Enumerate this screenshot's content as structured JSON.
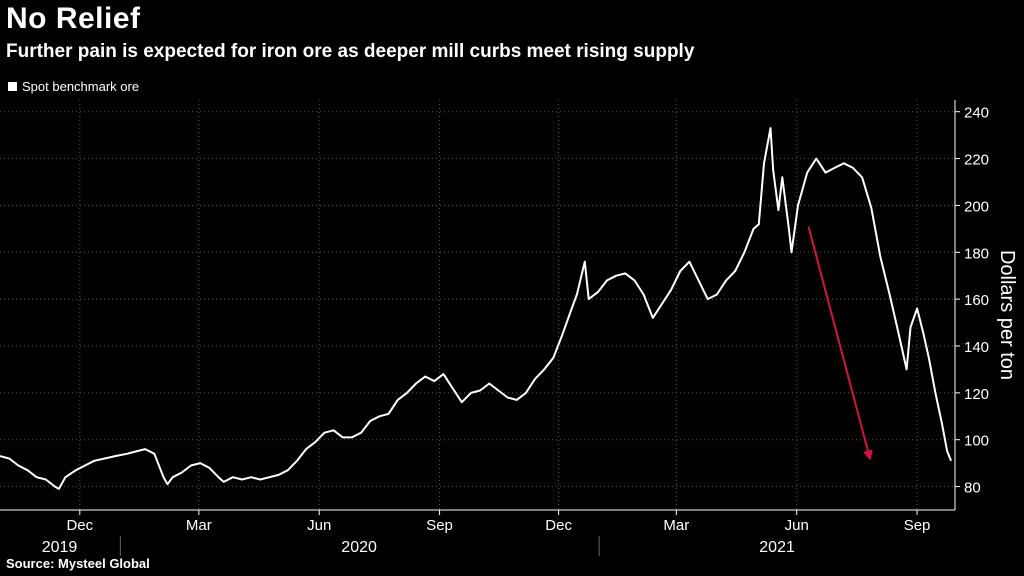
{
  "header": {
    "title": "No Relief",
    "subtitle": "Further pain is expected for iron ore as deeper mill curbs meet rising supply"
  },
  "legend": {
    "label": "Spot benchmark ore"
  },
  "source": "Source: Mysteel Global",
  "colors": {
    "background": "#000000",
    "line": "#ffffff",
    "grid": "#555555",
    "arrow": "#d6123f"
  },
  "chart_data": {
    "type": "line",
    "title": "No Relief",
    "subtitle": "Further pain is expected for iron ore as deeper mill curbs meet rising supply",
    "ylabel": "Dollars per ton",
    "xlabel": "",
    "ylim": [
      70,
      245
    ],
    "xlim": [
      "2019-10-01",
      "2021-09-30"
    ],
    "yticks": [
      80,
      100,
      120,
      140,
      160,
      180,
      200,
      220,
      240
    ],
    "xticks": [
      {
        "date": "2019-12-01",
        "label": "Dec"
      },
      {
        "date": "2020-03-01",
        "label": "Mar"
      },
      {
        "date": "2020-06-01",
        "label": "Jun"
      },
      {
        "date": "2020-09-01",
        "label": "Sep"
      },
      {
        "date": "2020-12-01",
        "label": "Dec"
      },
      {
        "date": "2021-03-01",
        "label": "Mar"
      },
      {
        "date": "2021-06-01",
        "label": "Jun"
      },
      {
        "date": "2021-09-01",
        "label": "Sep"
      }
    ],
    "years": [
      {
        "label": "2019",
        "from": "2019-10-01",
        "to": "2019-12-31"
      },
      {
        "label": "2020",
        "from": "2020-01-01",
        "to": "2020-12-31"
      },
      {
        "label": "2021",
        "from": "2021-01-01",
        "to": "2021-09-30"
      }
    ],
    "grid": true,
    "legend_position": "top-left",
    "series": [
      {
        "name": "Spot benchmark ore",
        "points": [
          [
            "2019-10-01",
            93
          ],
          [
            "2019-10-08",
            92
          ],
          [
            "2019-10-15",
            89
          ],
          [
            "2019-10-22",
            87
          ],
          [
            "2019-10-29",
            84
          ],
          [
            "2019-11-05",
            83
          ],
          [
            "2019-11-12",
            80
          ],
          [
            "2019-11-15",
            79
          ],
          [
            "2019-11-20",
            84
          ],
          [
            "2019-11-28",
            87
          ],
          [
            "2019-12-05",
            89
          ],
          [
            "2019-12-12",
            91
          ],
          [
            "2019-12-20",
            92
          ],
          [
            "2019-12-28",
            93
          ],
          [
            "2020-01-06",
            94
          ],
          [
            "2020-01-13",
            95
          ],
          [
            "2020-01-20",
            96
          ],
          [
            "2020-01-27",
            94
          ],
          [
            "2020-02-03",
            84
          ],
          [
            "2020-02-06",
            81
          ],
          [
            "2020-02-10",
            84
          ],
          [
            "2020-02-17",
            86
          ],
          [
            "2020-02-24",
            89
          ],
          [
            "2020-03-02",
            90
          ],
          [
            "2020-03-09",
            88
          ],
          [
            "2020-03-16",
            84
          ],
          [
            "2020-03-20",
            82
          ],
          [
            "2020-03-27",
            84
          ],
          [
            "2020-04-03",
            83
          ],
          [
            "2020-04-10",
            84
          ],
          [
            "2020-04-17",
            83
          ],
          [
            "2020-04-24",
            84
          ],
          [
            "2020-05-01",
            85
          ],
          [
            "2020-05-08",
            87
          ],
          [
            "2020-05-15",
            91
          ],
          [
            "2020-05-22",
            96
          ],
          [
            "2020-05-29",
            99
          ],
          [
            "2020-06-05",
            103
          ],
          [
            "2020-06-12",
            104
          ],
          [
            "2020-06-19",
            101
          ],
          [
            "2020-06-26",
            101
          ],
          [
            "2020-07-03",
            103
          ],
          [
            "2020-07-10",
            108
          ],
          [
            "2020-07-17",
            110
          ],
          [
            "2020-07-24",
            111
          ],
          [
            "2020-07-31",
            117
          ],
          [
            "2020-08-07",
            120
          ],
          [
            "2020-08-14",
            124
          ],
          [
            "2020-08-21",
            127
          ],
          [
            "2020-08-28",
            125
          ],
          [
            "2020-09-04",
            128
          ],
          [
            "2020-09-11",
            122
          ],
          [
            "2020-09-18",
            116
          ],
          [
            "2020-09-25",
            120
          ],
          [
            "2020-10-02",
            121
          ],
          [
            "2020-10-09",
            124
          ],
          [
            "2020-10-16",
            121
          ],
          [
            "2020-10-23",
            118
          ],
          [
            "2020-10-30",
            117
          ],
          [
            "2020-11-06",
            120
          ],
          [
            "2020-11-13",
            126
          ],
          [
            "2020-11-20",
            130
          ],
          [
            "2020-11-27",
            135
          ],
          [
            "2020-12-04",
            145
          ],
          [
            "2020-12-11",
            156
          ],
          [
            "2020-12-15",
            162
          ],
          [
            "2020-12-21",
            176
          ],
          [
            "2020-12-24",
            160
          ],
          [
            "2020-12-31",
            163
          ],
          [
            "2021-01-07",
            168
          ],
          [
            "2021-01-14",
            170
          ],
          [
            "2021-01-21",
            171
          ],
          [
            "2021-01-28",
            168
          ],
          [
            "2021-02-04",
            162
          ],
          [
            "2021-02-11",
            152
          ],
          [
            "2021-02-18",
            158
          ],
          [
            "2021-02-25",
            164
          ],
          [
            "2021-03-04",
            172
          ],
          [
            "2021-03-11",
            176
          ],
          [
            "2021-03-18",
            168
          ],
          [
            "2021-03-25",
            160
          ],
          [
            "2021-04-01",
            162
          ],
          [
            "2021-04-08",
            168
          ],
          [
            "2021-04-15",
            172
          ],
          [
            "2021-04-22",
            180
          ],
          [
            "2021-04-29",
            190
          ],
          [
            "2021-05-03",
            192
          ],
          [
            "2021-05-07",
            218
          ],
          [
            "2021-05-12",
            233
          ],
          [
            "2021-05-14",
            215
          ],
          [
            "2021-05-18",
            198
          ],
          [
            "2021-05-21",
            212
          ],
          [
            "2021-05-26",
            190
          ],
          [
            "2021-05-28",
            180
          ],
          [
            "2021-06-02",
            200
          ],
          [
            "2021-06-09",
            214
          ],
          [
            "2021-06-16",
            220
          ],
          [
            "2021-06-23",
            214
          ],
          [
            "2021-06-30",
            216
          ],
          [
            "2021-07-07",
            218
          ],
          [
            "2021-07-14",
            216
          ],
          [
            "2021-07-21",
            212
          ],
          [
            "2021-07-28",
            199
          ],
          [
            "2021-08-04",
            178
          ],
          [
            "2021-08-11",
            162
          ],
          [
            "2021-08-16",
            150
          ],
          [
            "2021-08-20",
            140
          ],
          [
            "2021-08-24",
            130
          ],
          [
            "2021-08-27",
            148
          ],
          [
            "2021-09-01",
            156
          ],
          [
            "2021-09-06",
            145
          ],
          [
            "2021-09-10",
            135
          ],
          [
            "2021-09-15",
            120
          ],
          [
            "2021-09-20",
            107
          ],
          [
            "2021-09-24",
            95
          ],
          [
            "2021-09-27",
            91
          ]
        ]
      }
    ],
    "annotations": [
      {
        "type": "arrow",
        "from": [
          "2021-06-10",
          191
        ],
        "to": [
          "2021-07-27",
          92
        ]
      }
    ]
  }
}
